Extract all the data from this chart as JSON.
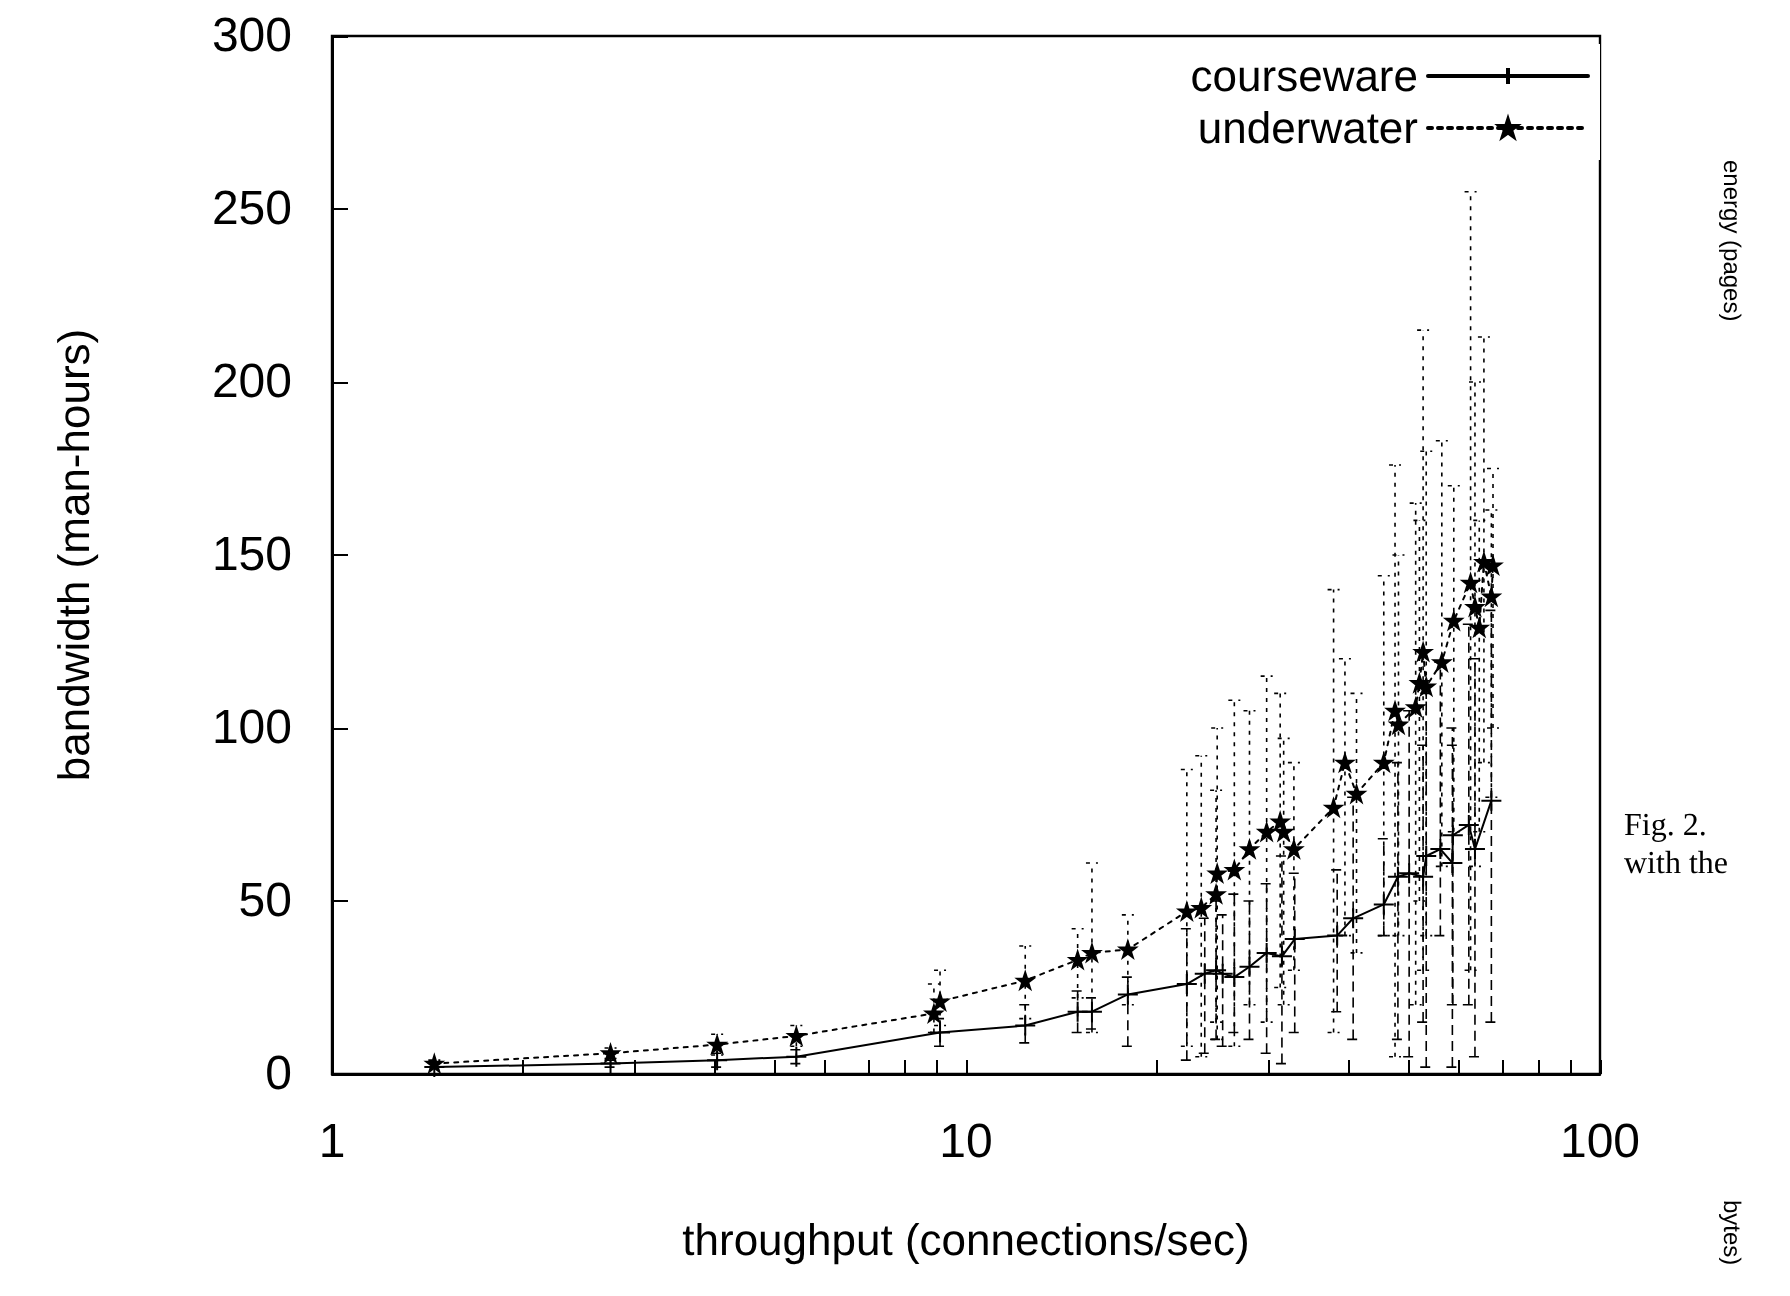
{
  "chart_data": {
    "type": "line",
    "xlabel": "throughput (connections/sec)",
    "ylabel": "bandwidth (man-hours)",
    "log": "x",
    "xlim": [
      1,
      100
    ],
    "ylim": [
      0,
      300
    ],
    "xticks": [
      1,
      {
        "value": 2,
        "label": null
      },
      {
        "value": 3,
        "label": null
      },
      {
        "value": 4,
        "label": null
      },
      {
        "value": 5,
        "label": null
      },
      {
        "value": 6,
        "label": null
      },
      {
        "value": 7,
        "label": null
      },
      {
        "value": 8,
        "label": null
      },
      {
        "value": 9,
        "label": null
      },
      10,
      {
        "value": 20,
        "label": null
      },
      {
        "value": 30,
        "label": null
      },
      {
        "value": 40,
        "label": null
      },
      {
        "value": 50,
        "label": null
      },
      {
        "value": 60,
        "label": null
      },
      {
        "value": 70,
        "label": null
      },
      {
        "value": 80,
        "label": null
      },
      {
        "value": 90,
        "label": null
      },
      100
    ],
    "yticks": [
      0,
      50,
      100,
      150,
      200,
      250,
      300
    ],
    "legend": "top right",
    "annotations": [
      "Fig. 2.",
      "with the",
      "energy (pages)",
      "bytes)"
    ],
    "series": [
      {
        "name": "courseware",
        "color": "#000000",
        "line_style": "solid",
        "marker": "cross",
        "x": [
          1.45,
          2.75,
          4.05,
          5.4,
          9.1,
          12.4,
          15.0,
          15.8,
          18.0,
          22.3,
          23.8,
          24.8,
          25.4,
          26.5,
          28.0,
          29.8,
          31.5,
          33.0,
          38.5,
          40.8,
          45.6,
          48.0,
          50.0,
          52.6,
          53.2,
          56.0,
          58.5,
          58.6,
          62.1,
          63.5,
          67.4
        ],
        "values": [
          2,
          3,
          4,
          5,
          12,
          14,
          18,
          18,
          23,
          26,
          29,
          30,
          29,
          28,
          31,
          35,
          34,
          39,
          40,
          45,
          49,
          57,
          58,
          57,
          63,
          65,
          61,
          69,
          72,
          65,
          79
        ],
        "errors": [
          null,
          1,
          2,
          2,
          [
            8,
            16
          ],
          [
            9,
            20
          ],
          [
            12,
            24
          ],
          [
            13,
            22
          ],
          [
            8,
            28
          ],
          [
            4,
            42
          ],
          [
            6,
            45
          ],
          [
            10,
            50
          ],
          [
            8,
            46
          ],
          [
            12,
            52
          ],
          [
            10,
            50
          ],
          [
            6,
            55
          ],
          [
            3,
            63
          ],
          [
            12,
            58
          ],
          [
            18,
            59
          ],
          [
            10,
            80
          ],
          [
            40,
            68
          ],
          [
            10,
            90
          ],
          [
            5,
            105
          ],
          [
            15,
            95
          ],
          [
            2,
            110
          ],
          [
            40,
            119
          ],
          [
            2,
            100
          ],
          [
            20,
            95
          ],
          [
            20,
            130
          ],
          [
            5,
            120
          ],
          [
            15,
            134
          ]
        ]
      },
      {
        "name": "underwater",
        "color": "#000000",
        "line_style": "dotted",
        "marker": "star",
        "x": [
          1.45,
          2.75,
          4.05,
          5.4,
          8.9,
          9.1,
          12.4,
          15.0,
          15.8,
          18.0,
          22.3,
          23.5,
          24.8,
          24.9,
          26.5,
          28.0,
          29.8,
          31.3,
          31.7,
          32.9,
          38.0,
          39.6,
          41.3,
          45.6,
          47.5,
          48.1,
          51.2,
          51.9,
          52.6,
          53.2,
          56.3,
          58.8,
          62.5,
          63.5,
          64.5,
          65.6,
          67.4,
          67.8
        ],
        "values": [
          3,
          6,
          8.5,
          11,
          17.5,
          21,
          27,
          33,
          35,
          36,
          47,
          48,
          52,
          58,
          59,
          65,
          70,
          73,
          70,
          65,
          77,
          90,
          81,
          90,
          105,
          101,
          106,
          113,
          122,
          112,
          119,
          131,
          142,
          135,
          129,
          148,
          138,
          147
        ],
        "errors": [
          1,
          1.5,
          3,
          3,
          [
            12,
            26
          ],
          [
            14,
            30
          ],
          [
            16,
            37
          ],
          [
            22,
            42
          ],
          [
            12,
            61
          ],
          [
            20,
            46
          ],
          [
            8,
            88
          ],
          [
            5,
            92
          ],
          [
            15,
            82
          ],
          [
            10,
            100
          ],
          [
            8,
            108
          ],
          [
            20,
            105
          ],
          [
            15,
            115
          ],
          [
            25,
            110
          ],
          [
            20,
            97
          ],
          [
            30,
            90
          ],
          [
            12,
            140
          ],
          [
            40,
            120
          ],
          [
            35,
            110
          ],
          [
            40,
            144
          ],
          [
            5,
            176
          ],
          [
            40,
            150
          ],
          [
            20,
            165
          ],
          [
            50,
            160
          ],
          [
            30,
            215
          ],
          [
            40,
            180
          ],
          [
            60,
            183
          ],
          [
            70,
            170
          ],
          [
            30,
            255
          ],
          [
            60,
            200
          ],
          [
            70,
            160
          ],
          [
            90,
            213
          ],
          [
            80,
            163
          ],
          [
            100,
            175
          ]
        ]
      }
    ]
  }
}
